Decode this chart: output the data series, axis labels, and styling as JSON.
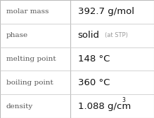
{
  "rows": [
    {
      "label": "molar mass",
      "value": "392.7 g/mol",
      "superscript": null,
      "small_text": null
    },
    {
      "label": "phase",
      "value": "solid",
      "superscript": null,
      "small_text": "(at STP)"
    },
    {
      "label": "melting point",
      "value": "148 °C",
      "superscript": null,
      "small_text": null
    },
    {
      "label": "boiling point",
      "value": "360 °C",
      "superscript": null,
      "small_text": null
    },
    {
      "label": "density",
      "value": "1.088 g/cm",
      "superscript": "3",
      "small_text": null
    }
  ],
  "background_color": "#ffffff",
  "border_color": "#bbbbbb",
  "label_color": "#555555",
  "value_color": "#111111",
  "small_text_color": "#999999",
  "divider_color": "#cccccc",
  "col_split": 0.455,
  "label_fontsize": 7.5,
  "value_fontsize": 9.5,
  "small_fontsize": 6.0,
  "super_fontsize": 5.5,
  "label_font": "DejaVu Serif",
  "value_font": "DejaVu Sans"
}
